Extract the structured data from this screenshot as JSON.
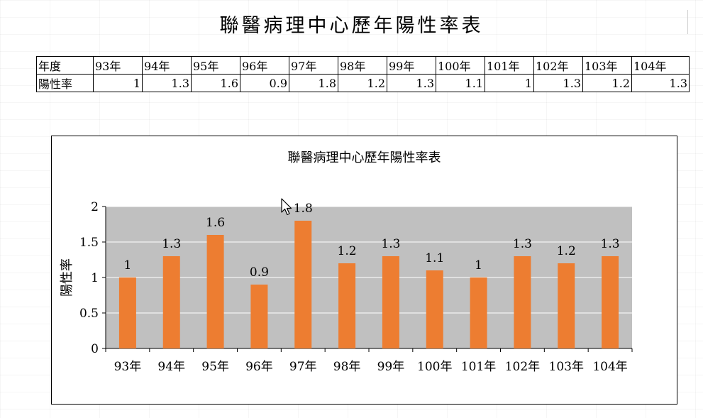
{
  "page": {
    "title": "聯醫病理中心歷年陽性率表"
  },
  "table": {
    "header_label": "年度",
    "row_label": "陽性率",
    "years": [
      "93年",
      "94年",
      "95年",
      "96年",
      "97年",
      "98年",
      "99年",
      "100年",
      "101年",
      "102年",
      "103年",
      "104年"
    ],
    "values": [
      "1",
      "1.3",
      "1.6",
      "0.9",
      "1.8",
      "1.2",
      "1.3",
      "1.1",
      "1",
      "1.3",
      "1.2",
      "1.3"
    ]
  },
  "chart_data": {
    "type": "bar",
    "title": "聯醫病理中心歷年陽性率表",
    "ylabel": "陽性率",
    "xlabel": "",
    "categories": [
      "93年",
      "94年",
      "95年",
      "96年",
      "97年",
      "98年",
      "99年",
      "100年",
      "101年",
      "102年",
      "103年",
      "104年"
    ],
    "values": [
      1,
      1.3,
      1.6,
      0.9,
      1.8,
      1.2,
      1.3,
      1.1,
      1,
      1.3,
      1.2,
      1.3
    ],
    "data_labels": [
      "1",
      "1.3",
      "1.6",
      "0.9",
      "1.8",
      "1.2",
      "1.3",
      "1.1",
      "1",
      "1.3",
      "1.2",
      "1.3"
    ],
    "ylim": [
      0,
      2
    ],
    "yticks": [
      "0",
      "0.5",
      "1",
      "1.5",
      "2"
    ],
    "grid": true,
    "legend": "none",
    "colors": {
      "bar": "#ED7D31",
      "plot_background": "#C0C0C0",
      "gridline": "#FFFFFF"
    }
  }
}
